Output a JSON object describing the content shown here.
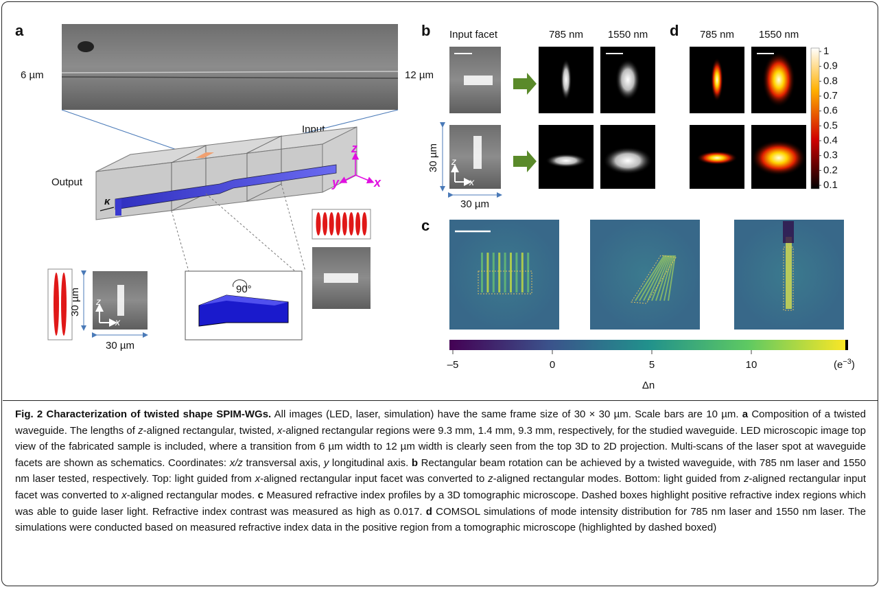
{
  "figure": {
    "panel_labels": [
      "a",
      "b",
      "c",
      "d"
    ],
    "a": {
      "left_width": "6 µm",
      "right_width": "12 µm",
      "input": "Input",
      "output": "Output",
      "kappa": "κ",
      "axis_z": "z",
      "axis_y": "y",
      "axis_x": "x",
      "rotation": "90°",
      "scale_vertical": "30 µm",
      "scale_horizontal": "30 µm",
      "inset_z": "z",
      "inset_x": "x"
    },
    "b": {
      "col_input": "Input facet",
      "col_785": "785 nm",
      "col_1550": "1550 nm",
      "scale_vertical": "30 µm",
      "scale_horizontal": "30 µm",
      "inset_z": "z",
      "inset_x": "x"
    },
    "d": {
      "col_785": "785 nm",
      "col_1550": "1550 nm",
      "colorbar_ticks": [
        "1",
        "0.9",
        "0.8",
        "0.7",
        "0.6",
        "0.5",
        "0.4",
        "0.3",
        "0.2",
        "0.1"
      ]
    },
    "c": {
      "colorbar_ticks": [
        "–5",
        "0",
        "5",
        "10"
      ],
      "unit_open": "(e",
      "unit_exp": "−3",
      "unit_close": ")",
      "colorbar_label": "Δn"
    }
  },
  "caption": {
    "runs": [
      "Fig. 2 Characterization of twisted shape SPIM-WGs.",
      " All images (LED, laser, simulation) have the same frame size of 30 × 30 µm. Scale bars are 10 µm. ",
      "a",
      " Composition of a twisted waveguide. The lengths of ",
      "z",
      "-aligned rectangular, twisted, ",
      "x",
      "-aligned rectangular regions were 9.3 mm, 1.4 mm, 9.3 mm, respectively, for the studied waveguide. LED microscopic image top view of the fabricated sample is included, where a transition from 6 µm width to 12 µm width is clearly seen from the top 3D to 2D projection. Multi-scans of the laser spot at waveguide facets are shown as schematics. Coordinates: ",
      "x/z",
      " transversal axis, ",
      "y",
      " longitudinal axis. ",
      "b",
      " Rectangular beam rotation can be achieved by a twisted waveguide, with 785 nm laser and 1550 nm laser tested, respectively. Top: light guided from ",
      "x",
      "-aligned rectangular input facet was converted to ",
      "z",
      "-aligned rectangular modes. Bottom: light guided from ",
      "z",
      "-aligned rectangular input facet was converted to ",
      "x",
      "-aligned rectangular modes. ",
      "c",
      " Measured refractive index profiles by a 3D tomographic microscope. Dashed boxes highlight positive refractive index regions which was able to guide laser light. Refractive index contrast was measured as high as 0.017. ",
      "d",
      " COMSOL simulations of mode intensity distribution for 785 nm laser and 1550 nm laser. The simulations were conducted based on measured refractive index data in the positive region from a tomographic microscope (highlighted by dashed boxed)"
    ]
  }
}
